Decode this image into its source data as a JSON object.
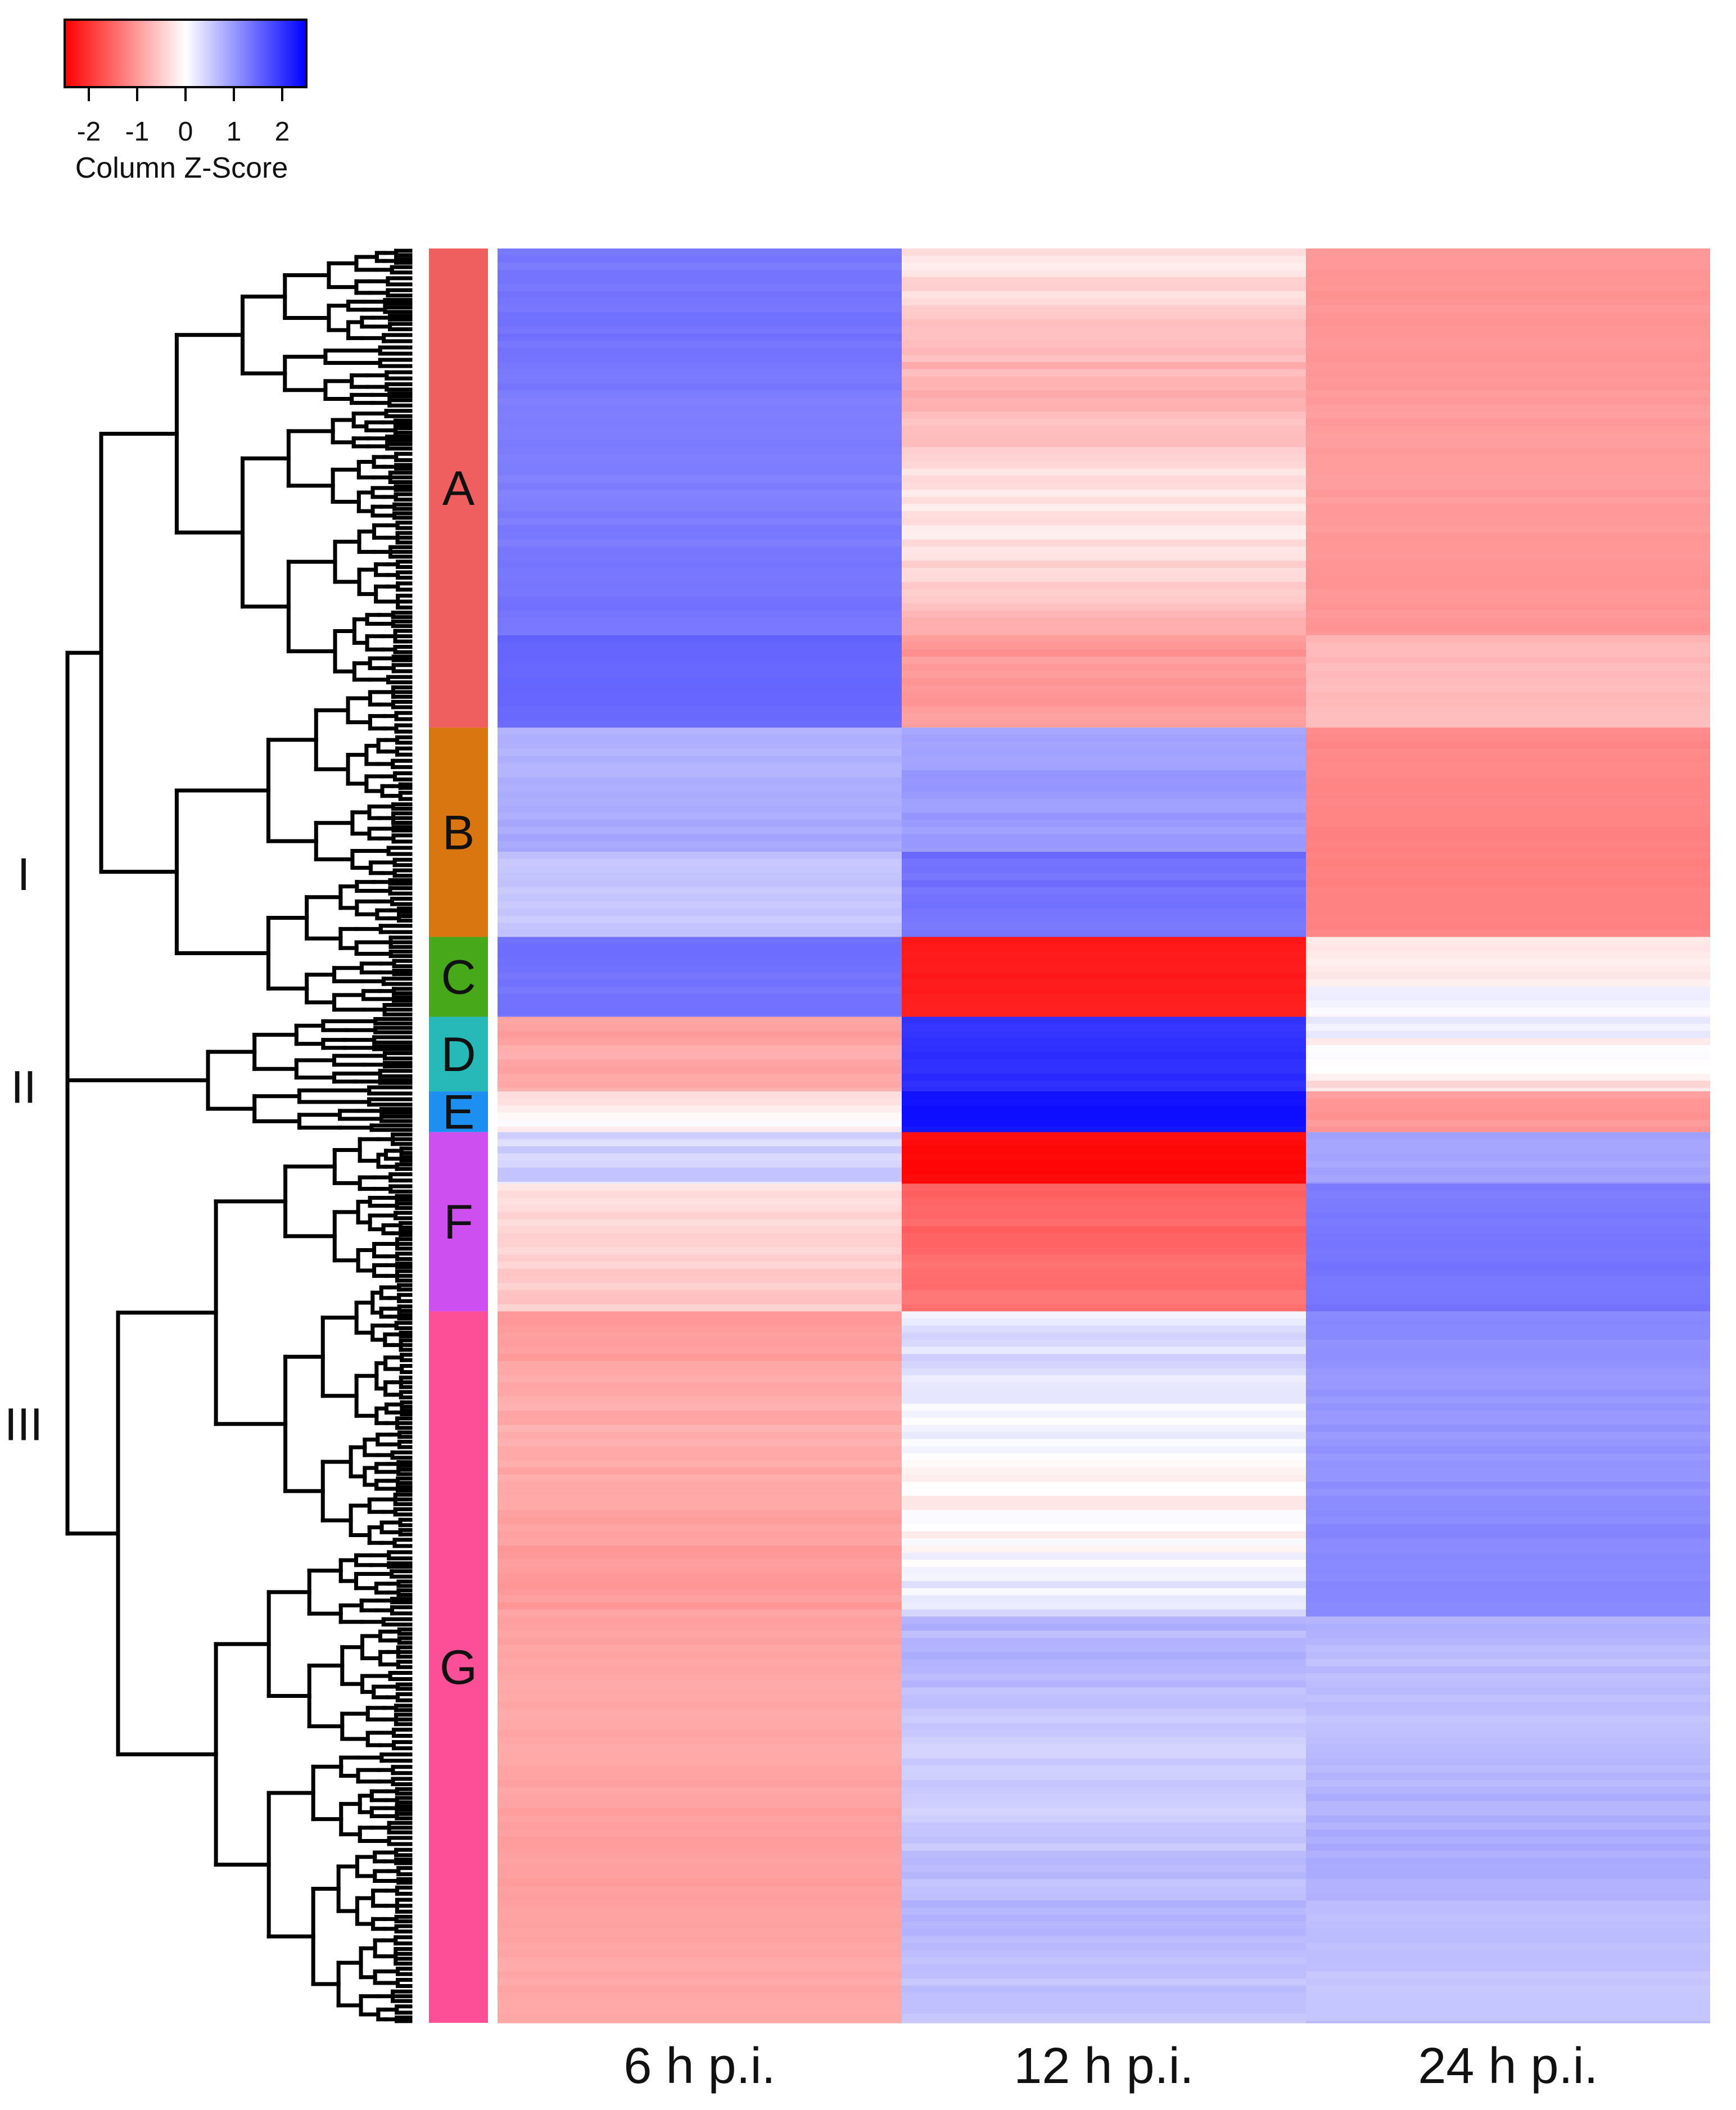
{
  "chart_data": {
    "type": "heatmap",
    "title": "",
    "legend": {
      "title": "Column Z-Score",
      "range": [
        -2.5,
        2.5
      ],
      "ticks": [
        -2,
        -1,
        0,
        1,
        2
      ],
      "tick_labels": [
        "-2",
        "-1",
        "0",
        "1",
        "2"
      ],
      "low_color": "#ff0000",
      "mid_color": "#ffffff",
      "high_color": "#0000ff",
      "placement": "top-left"
    },
    "columns": [
      "6 h p.i.",
      "12 h p.i.",
      "24 h p.i."
    ],
    "row_count_units": 1000,
    "clusters": [
      {
        "label": "A",
        "start": 0,
        "end": 270,
        "color": "#ef5f5f"
      },
      {
        "label": "B",
        "start": 270,
        "end": 388,
        "color": "#d9760f"
      },
      {
        "label": "C",
        "start": 388,
        "end": 433,
        "color": "#47a81a"
      },
      {
        "label": "D",
        "start": 433,
        "end": 475,
        "color": "#27b8b8"
      },
      {
        "label": "E",
        "start": 475,
        "end": 498,
        "color": "#1d8ff0"
      },
      {
        "label": "F",
        "start": 498,
        "end": 599,
        "color": "#cd4ff0"
      },
      {
        "label": "G",
        "start": 599,
        "end": 1000,
        "color": "#fc4f98"
      }
    ],
    "groups": [
      {
        "label": "I",
        "row": 352
      },
      {
        "label": "II",
        "row": 472
      },
      {
        "label": "III",
        "row": 662
      }
    ],
    "blocks": [
      {
        "start": 0,
        "end": 218,
        "values": [
          1.3,
          -0.5,
          -1.0
        ],
        "noise": [
          0.1,
          0.35,
          0.08
        ]
      },
      {
        "start": 218,
        "end": 270,
        "values": [
          1.5,
          -0.9,
          -0.7
        ],
        "noise": [
          0.08,
          0.2,
          0.1
        ]
      },
      {
        "start": 270,
        "end": 340,
        "values": [
          0.8,
          0.9,
          -1.2
        ],
        "noise": [
          0.12,
          0.15,
          0.06
        ]
      },
      {
        "start": 340,
        "end": 388,
        "values": [
          0.5,
          1.4,
          -1.2
        ],
        "noise": [
          0.15,
          0.15,
          0.06
        ]
      },
      {
        "start": 388,
        "end": 433,
        "values": [
          1.4,
          -2.2,
          -0.3
        ],
        "noise": [
          0.08,
          0.08,
          0.45
        ]
      },
      {
        "start": 433,
        "end": 475,
        "values": [
          -0.8,
          2.0,
          -0.2
        ],
        "noise": [
          0.2,
          0.1,
          0.45
        ]
      },
      {
        "start": 475,
        "end": 498,
        "values": [
          -0.2,
          2.3,
          -0.8
        ],
        "noise": [
          0.4,
          0.08,
          0.3
        ]
      },
      {
        "start": 498,
        "end": 527,
        "values": [
          0.2,
          -2.4,
          1.0
        ],
        "noise": [
          0.4,
          0.08,
          0.15
        ]
      },
      {
        "start": 527,
        "end": 599,
        "values": [
          -0.4,
          -1.4,
          1.3
        ],
        "noise": [
          0.2,
          0.2,
          0.08
        ]
      },
      {
        "start": 599,
        "end": 771,
        "values": [
          -0.9,
          0.1,
          1.1
        ],
        "noise": [
          0.15,
          0.35,
          0.12
        ]
      },
      {
        "start": 771,
        "end": 1000,
        "values": [
          -0.9,
          0.6,
          0.7
        ],
        "noise": [
          0.08,
          0.2,
          0.15
        ]
      }
    ]
  }
}
